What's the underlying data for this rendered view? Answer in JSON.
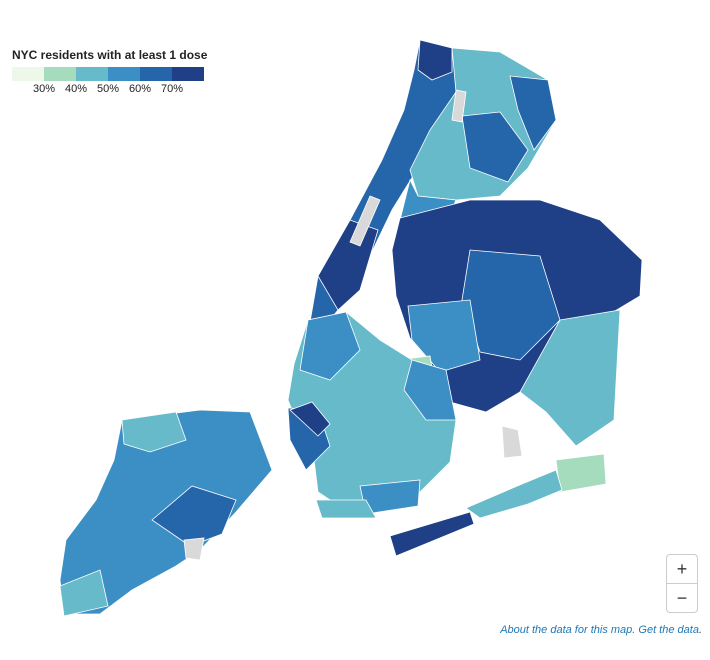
{
  "legend": {
    "title": "NYC residents with at least 1 dose",
    "colors": [
      "#eef8ea",
      "#a6dcbe",
      "#67bac9",
      "#3c8fc4",
      "#2566ab",
      "#1f3f87"
    ],
    "ticks": [
      "30%",
      "40%",
      "50%",
      "60%",
      "70%"
    ]
  },
  "zoom": {
    "in_label": "+",
    "out_label": "−"
  },
  "footer": {
    "link1": "About the data for this map.",
    "link2": "Get the data",
    "end": "."
  },
  "map": {
    "water_color": "#ffffff",
    "border_color": "#ffffff",
    "missing_color": "#d9d9d9"
  }
}
